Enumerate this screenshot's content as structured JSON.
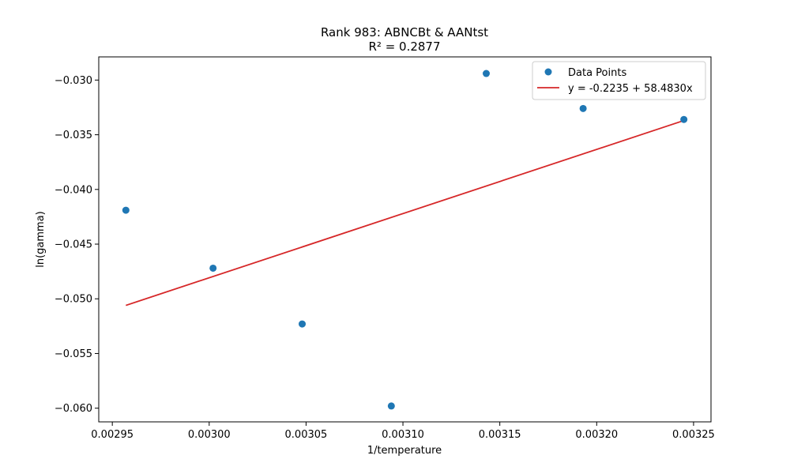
{
  "chart_data": {
    "type": "scatter",
    "title": "Rank 983: ABNCBt & AANtst",
    "subtitle": "R² = 0.2877",
    "xlabel": "1/temperature",
    "ylabel": "ln(gamma)",
    "xlim": [
      0.002943,
      0.003259
    ],
    "ylim": [
      -0.06125,
      -0.02788
    ],
    "x_ticks": [
      0.00295,
      0.003,
      0.00305,
      0.0031,
      0.00315,
      0.0032,
      0.00325
    ],
    "x_tick_labels": [
      "0.00295",
      "0.00300",
      "0.00305",
      "0.00310",
      "0.00315",
      "0.00320",
      "0.00325"
    ],
    "y_ticks": [
      -0.06,
      -0.055,
      -0.05,
      -0.045,
      -0.04,
      -0.035,
      -0.03
    ],
    "y_tick_labels": [
      "−0.060",
      "−0.055",
      "−0.050",
      "−0.045",
      "−0.040",
      "−0.035",
      "−0.030"
    ],
    "grid": false,
    "legend_placement": "top-right",
    "series": [
      {
        "name": "Data Points",
        "kind": "scatter",
        "color": "#1f77b4",
        "x": [
          0.002957,
          0.003002,
          0.003048,
          0.003094,
          0.003143,
          0.003193,
          0.003245
        ],
        "y": [
          -0.0419,
          -0.0472,
          -0.0523,
          -0.0598,
          -0.0294,
          -0.0326,
          -0.0336
        ]
      },
      {
        "name": "y = -0.2235 + 58.4830x",
        "kind": "line",
        "color": "#d62728",
        "x": [
          0.002957,
          0.003245
        ],
        "y": [
          -0.0506,
          -0.0337
        ]
      }
    ]
  }
}
